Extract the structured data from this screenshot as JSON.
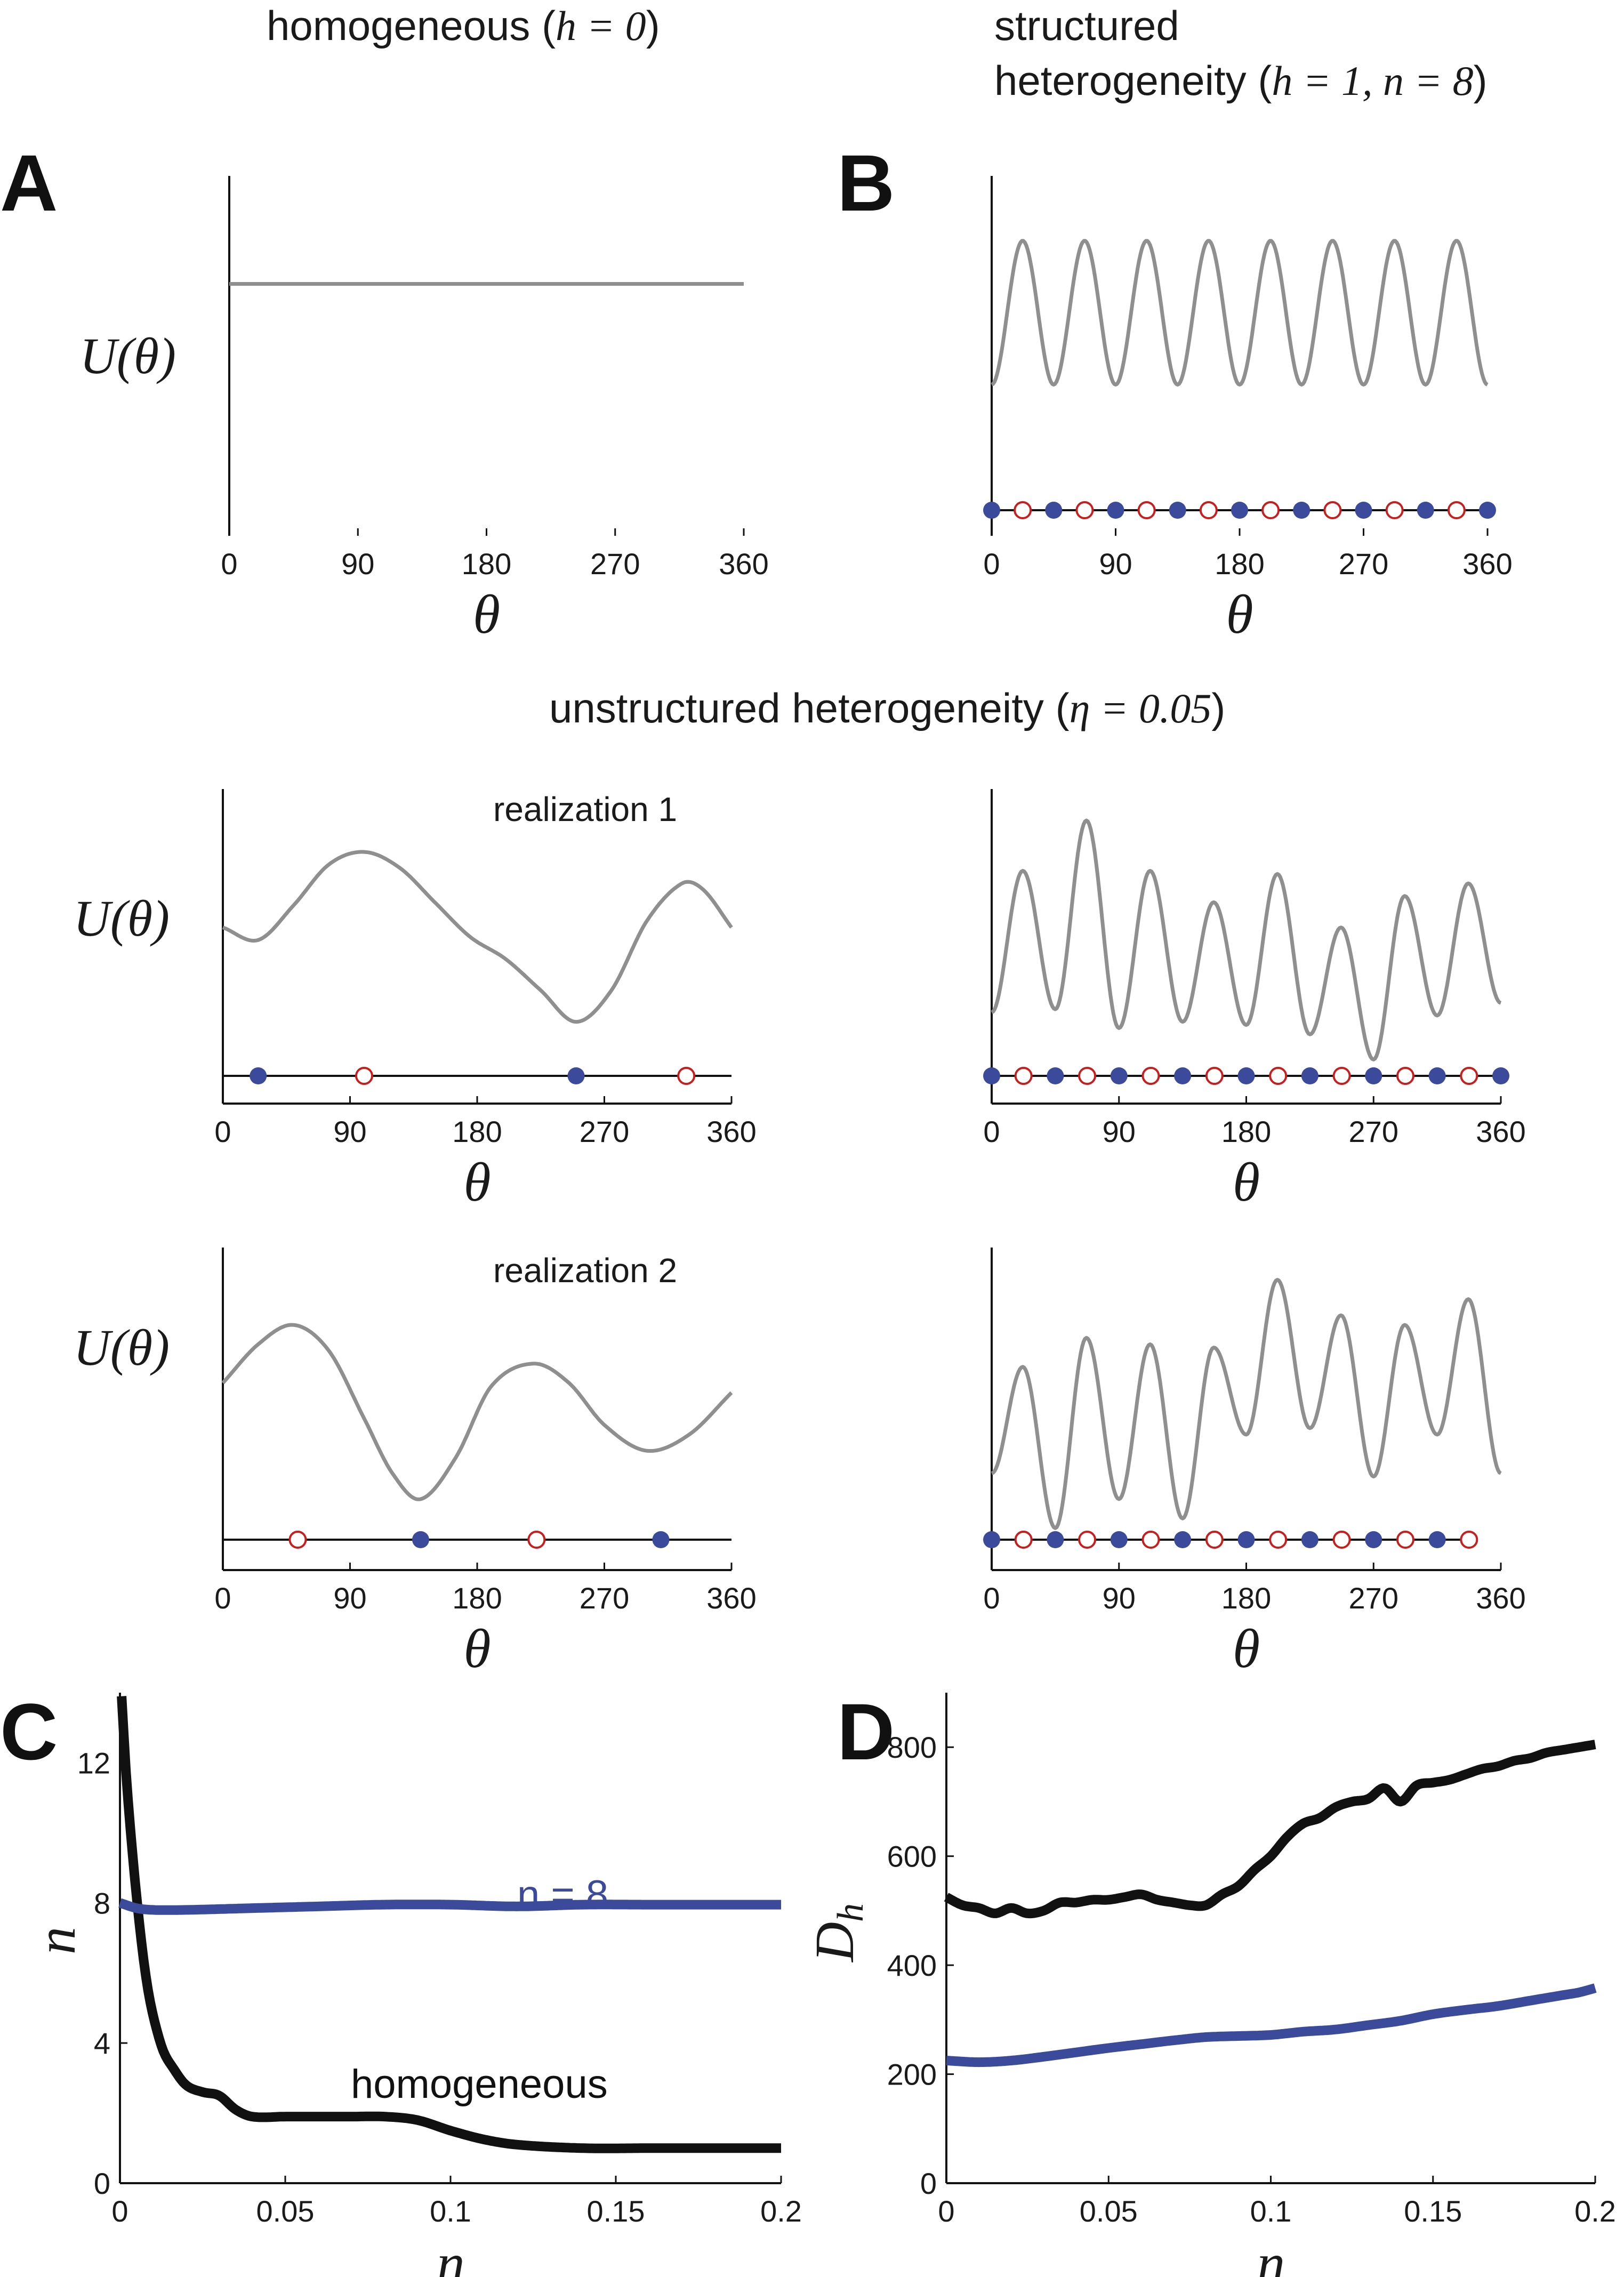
{
  "headings": {
    "homogeneous_prefix": "homogeneous (",
    "homogeneous_math": "h = 0",
    "homogeneous_suffix": ")",
    "structured_line1": "structured",
    "structured_line2_prefix": "heterogeneity (",
    "structured_line2_math": "h = 1, n = 8",
    "structured_line2_suffix": ")",
    "unstructured_prefix": "unstructured heterogeneity (",
    "unstructured_math": "η = 0.05",
    "unstructured_suffix": ")"
  },
  "panel_letters": {
    "a": "A",
    "b": "B",
    "c": "C",
    "d": "D"
  },
  "realization_labels": {
    "r1": "realization 1",
    "r2": "realization 2"
  },
  "colors": {
    "curve": "#8f8f8f",
    "black": "#111111",
    "blue": "#3b4a9a",
    "red": "#c81e1e"
  },
  "chart_data": [
    {
      "id": "A",
      "type": "line",
      "title": "homogeneous (h = 0)",
      "xlabel": "θ",
      "ylabel": "U(θ)",
      "xlim": [
        0,
        360
      ],
      "xticks": [
        "0",
        "90",
        "180",
        "270",
        "360"
      ],
      "curve": {
        "kind": "constant",
        "value": 0.7
      },
      "stable_points": [],
      "unstable_points": []
    },
    {
      "id": "B",
      "type": "line",
      "title": "structured heterogeneity (h = 1, n = 8)",
      "xlabel": "θ",
      "ylabel": "",
      "xlim": [
        0,
        360
      ],
      "xticks": [
        "0",
        "90",
        "180",
        "270",
        "360"
      ],
      "curve": {
        "kind": "cos",
        "n": 8,
        "offset": 0.62,
        "amplitude": 0.2
      },
      "stable_points": [
        0,
        45,
        90,
        135,
        180,
        225,
        270,
        315,
        360
      ],
      "unstable_points": [
        22.5,
        67.5,
        112.5,
        157.5,
        202.5,
        247.5,
        292.5,
        337.5
      ]
    },
    {
      "id": "R1_homog",
      "type": "line",
      "title": "realization 1",
      "xlabel": "θ",
      "ylabel": "U(θ)",
      "xlim": [
        0,
        360
      ],
      "xticks": [
        "0",
        "90",
        "180",
        "270",
        "360"
      ],
      "curve": {
        "kind": "points",
        "x": [
          0,
          25,
          50,
          75,
          100,
          125,
          150,
          175,
          200,
          225,
          250,
          275,
          300,
          325,
          340,
          360
        ],
        "y": [
          0.56,
          0.52,
          0.63,
          0.76,
          0.8,
          0.75,
          0.64,
          0.53,
          0.46,
          0.36,
          0.26,
          0.36,
          0.58,
          0.7,
          0.68,
          0.56
        ]
      },
      "stable_points": [
        25,
        250
      ],
      "unstable_points": [
        100,
        328
      ]
    },
    {
      "id": "R1_struct",
      "type": "line",
      "title": "",
      "xlabel": "θ",
      "ylabel": "",
      "xlim": [
        0,
        360
      ],
      "xticks": [
        "0",
        "90",
        "180",
        "270",
        "360"
      ],
      "curve": {
        "kind": "peaks",
        "maxima": [
          [
            22,
            0.74
          ],
          [
            67,
            0.9
          ],
          [
            112,
            0.74
          ],
          [
            157,
            0.64
          ],
          [
            202,
            0.73
          ],
          [
            247,
            0.56
          ],
          [
            292,
            0.66
          ],
          [
            337,
            0.7
          ]
        ],
        "minima": [
          [
            0,
            0.29
          ],
          [
            45,
            0.3
          ],
          [
            90,
            0.24
          ],
          [
            135,
            0.26
          ],
          [
            180,
            0.25
          ],
          [
            225,
            0.22
          ],
          [
            270,
            0.14
          ],
          [
            315,
            0.28
          ],
          [
            360,
            0.32
          ]
        ]
      },
      "stable_points": [
        0,
        45,
        90,
        135,
        180,
        225,
        270,
        315,
        360
      ],
      "unstable_points": [
        22.5,
        67.5,
        112.5,
        157.5,
        202.5,
        247.5,
        292.5,
        337.5
      ]
    },
    {
      "id": "R2_homog",
      "type": "line",
      "title": "realization 2",
      "xlabel": "θ",
      "ylabel": "U(θ)",
      "xlim": [
        0,
        360
      ],
      "xticks": [
        "0",
        "90",
        "180",
        "270",
        "360"
      ],
      "curve": {
        "kind": "points",
        "x": [
          0,
          25,
          50,
          75,
          100,
          120,
          140,
          165,
          190,
          220,
          245,
          270,
          300,
          330,
          360
        ],
        "y": [
          0.58,
          0.7,
          0.76,
          0.68,
          0.47,
          0.3,
          0.22,
          0.35,
          0.57,
          0.64,
          0.58,
          0.45,
          0.37,
          0.42,
          0.55
        ]
      },
      "stable_points": [
        140,
        310
      ],
      "unstable_points": [
        53,
        222
      ]
    },
    {
      "id": "R2_struct",
      "type": "line",
      "title": "",
      "xlabel": "θ",
      "ylabel": "",
      "xlim": [
        0,
        360
      ],
      "xticks": [
        "0",
        "90",
        "180",
        "270",
        "360"
      ],
      "curve": {
        "kind": "peaks",
        "maxima": [
          [
            22,
            0.63
          ],
          [
            67,
            0.72
          ],
          [
            112,
            0.7
          ],
          [
            157,
            0.69
          ],
          [
            202,
            0.9
          ],
          [
            247,
            0.79
          ],
          [
            292,
            0.76
          ],
          [
            337,
            0.84
          ]
        ],
        "minima": [
          [
            0,
            0.3
          ],
          [
            45,
            0.13
          ],
          [
            90,
            0.22
          ],
          [
            135,
            0.16
          ],
          [
            180,
            0.42
          ],
          [
            225,
            0.44
          ],
          [
            270,
            0.29
          ],
          [
            315,
            0.42
          ],
          [
            360,
            0.3
          ]
        ]
      },
      "stable_points": [
        0,
        45,
        90,
        135,
        180,
        225,
        270,
        315
      ],
      "unstable_points": [
        22.5,
        67.5,
        112.5,
        157.5,
        202.5,
        247.5,
        292.5,
        337.5
      ]
    },
    {
      "id": "C",
      "type": "line",
      "xlabel": "η",
      "ylabel": "n",
      "xlim": [
        0,
        0.2
      ],
      "ylim": [
        0,
        14
      ],
      "xticks": [
        "0",
        "0.05",
        "0.1",
        "0.15",
        "0.2"
      ],
      "yticks": [
        "0",
        "4",
        "8",
        "12"
      ],
      "series": [
        {
          "name": "homogeneous",
          "color": "#111111",
          "x": [
            0.0005,
            0.002,
            0.004,
            0.006,
            0.008,
            0.01,
            0.013,
            0.016,
            0.02,
            0.025,
            0.03,
            0.035,
            0.04,
            0.05,
            0.06,
            0.07,
            0.08,
            0.09,
            0.1,
            0.11,
            0.12,
            0.14,
            0.16,
            0.18,
            0.2
          ],
          "y": [
            13.9,
            11.5,
            9.2,
            7.3,
            5.8,
            4.8,
            3.8,
            3.3,
            2.8,
            2.6,
            2.5,
            2.1,
            1.9,
            1.9,
            1.9,
            1.9,
            1.9,
            1.8,
            1.5,
            1.25,
            1.1,
            1.0,
            1.0,
            1.0,
            1.0
          ]
        },
        {
          "name": "n = 8",
          "color": "#3b4a9a",
          "x": [
            0,
            0.005,
            0.01,
            0.02,
            0.04,
            0.06,
            0.08,
            0.1,
            0.12,
            0.14,
            0.16,
            0.18,
            0.2
          ],
          "y": [
            8.0,
            7.85,
            7.8,
            7.8,
            7.85,
            7.9,
            7.95,
            7.95,
            7.9,
            7.95,
            7.95,
            7.95,
            7.95
          ]
        }
      ],
      "annotations": [
        "n = 8",
        "homogeneous"
      ]
    },
    {
      "id": "D",
      "type": "line",
      "xlabel": "η",
      "ylabel": "Dh",
      "xlim": [
        0,
        0.2
      ],
      "ylim": [
        0,
        900
      ],
      "xticks": [
        "0",
        "0.05",
        "0.1",
        "0.15",
        "0.2"
      ],
      "yticks": [
        "0",
        "200",
        "400",
        "600",
        "800"
      ],
      "series": [
        {
          "name": "homogeneous",
          "color": "#111111",
          "x": [
            0,
            0.005,
            0.01,
            0.015,
            0.02,
            0.025,
            0.03,
            0.035,
            0.04,
            0.045,
            0.05,
            0.055,
            0.06,
            0.065,
            0.07,
            0.075,
            0.08,
            0.085,
            0.09,
            0.095,
            0.1,
            0.105,
            0.11,
            0.115,
            0.12,
            0.125,
            0.13,
            0.135,
            0.14,
            0.145,
            0.15,
            0.155,
            0.16,
            0.165,
            0.17,
            0.175,
            0.18,
            0.185,
            0.19,
            0.195,
            0.2
          ],
          "y": [
            525,
            510,
            505,
            495,
            505,
            495,
            500,
            515,
            515,
            520,
            520,
            525,
            530,
            520,
            515,
            510,
            510,
            530,
            545,
            575,
            600,
            635,
            660,
            670,
            690,
            700,
            705,
            725,
            700,
            730,
            735,
            740,
            750,
            760,
            765,
            775,
            780,
            790,
            795,
            800,
            805
          ]
        },
        {
          "name": "n = 8",
          "color": "#3b4a9a",
          "x": [
            0,
            0.01,
            0.02,
            0.03,
            0.04,
            0.05,
            0.06,
            0.07,
            0.08,
            0.09,
            0.1,
            0.11,
            0.12,
            0.13,
            0.14,
            0.15,
            0.16,
            0.17,
            0.18,
            0.19,
            0.195,
            0.2
          ],
          "y": [
            225,
            222,
            225,
            232,
            240,
            248,
            255,
            262,
            268,
            270,
            272,
            278,
            282,
            290,
            298,
            310,
            318,
            325,
            335,
            345,
            350,
            358
          ]
        }
      ]
    }
  ]
}
